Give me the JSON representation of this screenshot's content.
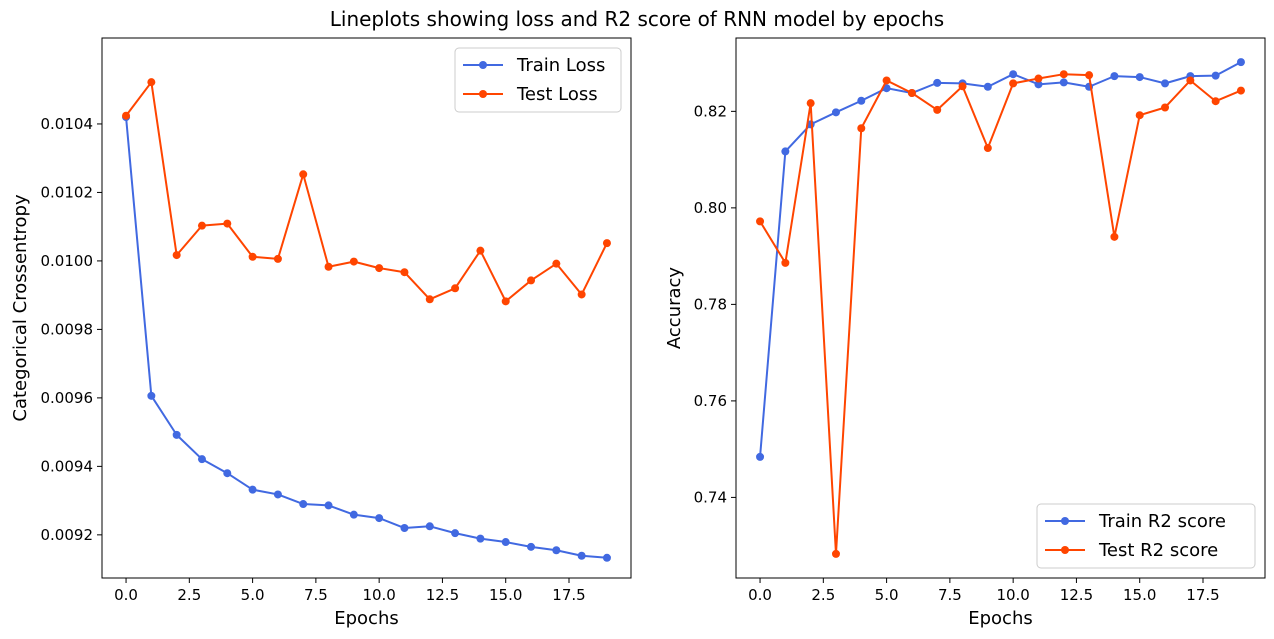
{
  "suptitle": "Lineplots showing loss and R2 score of RNN model by epochs",
  "colors": {
    "train": "#4169e1",
    "test": "#ff4500"
  },
  "chart_data": [
    {
      "type": "line",
      "xlabel": "Epochs",
      "ylabel": "Categorical Crossentropy",
      "xlim": [
        -0.95,
        19.95
      ],
      "ylim": [
        0.009074,
        0.010651
      ],
      "xticks": [
        0,
        2.5,
        5,
        7.5,
        10,
        12.5,
        15,
        17.5
      ],
      "xtick_labels": [
        "0.0",
        "2.5",
        "5.0",
        "7.5",
        "10.0",
        "12.5",
        "15.0",
        "17.5"
      ],
      "yticks": [
        0.0092,
        0.0094,
        0.0096,
        0.0098,
        0.01,
        0.0102,
        0.0104
      ],
      "ytick_labels": [
        "0.0092",
        "0.0094",
        "0.0096",
        "0.0098",
        "0.0100",
        "0.0102",
        "0.0104"
      ],
      "legend": {
        "position": "upper-right"
      },
      "x": [
        0,
        1,
        2,
        3,
        4,
        5,
        6,
        7,
        8,
        9,
        10,
        11,
        12,
        13,
        14,
        15,
        16,
        17,
        18,
        19
      ],
      "series": [
        {
          "name": "Train Loss",
          "color": "#4169e1",
          "values": [
            0.01042,
            0.009606,
            0.009492,
            0.009421,
            0.00938,
            0.009332,
            0.009318,
            0.00929,
            0.009286,
            0.009259,
            0.009249,
            0.00922,
            0.009225,
            0.009205,
            0.009189,
            0.009179,
            0.009165,
            0.009155,
            0.009139,
            0.009133
          ]
        },
        {
          "name": "Test Loss",
          "color": "#ff4500",
          "values": [
            0.010424,
            0.010522,
            0.010017,
            0.010103,
            0.010109,
            0.010012,
            0.010006,
            0.010253,
            0.009983,
            0.009998,
            0.009979,
            0.009967,
            0.009888,
            0.00992,
            0.01003,
            0.009882,
            0.009943,
            0.009992,
            0.009902,
            0.010052
          ]
        }
      ]
    },
    {
      "type": "line",
      "xlabel": "Epochs",
      "ylabel": "Accuracy",
      "xlim": [
        -0.95,
        19.95
      ],
      "ylim": [
        0.7233,
        0.8352
      ],
      "xticks": [
        0,
        2.5,
        5,
        7.5,
        10,
        12.5,
        15,
        17.5
      ],
      "xtick_labels": [
        "0.0",
        "2.5",
        "5.0",
        "7.5",
        "10.0",
        "12.5",
        "15.0",
        "17.5"
      ],
      "yticks": [
        0.74,
        0.76,
        0.78,
        0.8,
        0.82
      ],
      "ytick_labels": [
        "0.74",
        "0.76",
        "0.78",
        "0.80",
        "0.82"
      ],
      "legend": {
        "position": "lower-right"
      },
      "x": [
        0,
        1,
        2,
        3,
        4,
        5,
        6,
        7,
        8,
        9,
        10,
        11,
        12,
        13,
        14,
        15,
        16,
        17,
        18,
        19
      ],
      "series": [
        {
          "name": "Train R2 score",
          "color": "#4169e1",
          "values": [
            0.7484,
            0.8117,
            0.8173,
            0.8198,
            0.8222,
            0.8248,
            0.8238,
            0.8259,
            0.8258,
            0.8251,
            0.8277,
            0.8256,
            0.826,
            0.8251,
            0.8273,
            0.8271,
            0.8258,
            0.8273,
            0.8274,
            0.8302
          ]
        },
        {
          "name": "Test R2 score",
          "color": "#ff4500",
          "values": [
            0.7972,
            0.7886,
            0.8217,
            0.7283,
            0.8165,
            0.8264,
            0.8238,
            0.8203,
            0.8252,
            0.8124,
            0.8258,
            0.8268,
            0.8277,
            0.8275,
            0.794,
            0.8192,
            0.8208,
            0.8264,
            0.8221,
            0.8243
          ]
        }
      ]
    }
  ]
}
